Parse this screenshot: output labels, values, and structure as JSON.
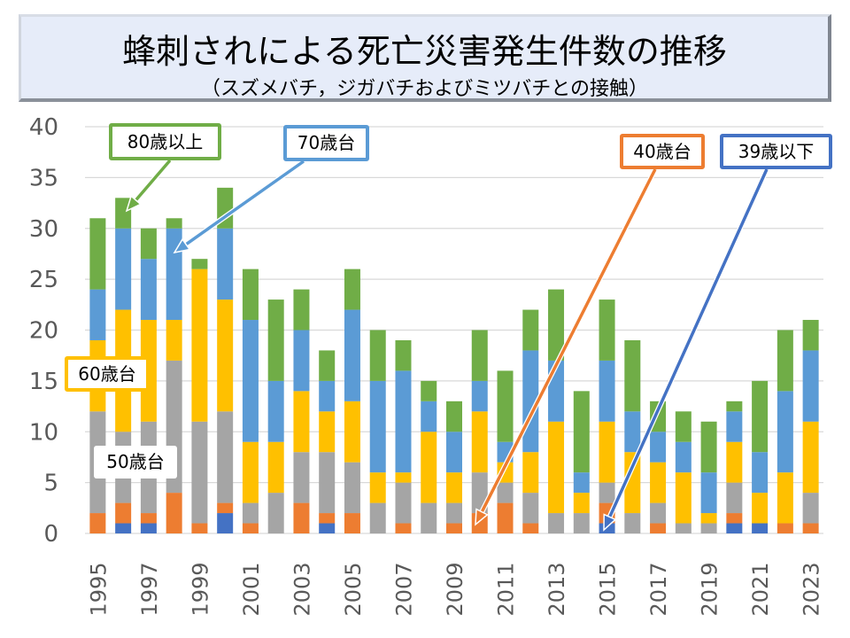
{
  "title": {
    "main": "蜂刺されによる死亡災害発生件数の推移",
    "sub": "（スズメバチ，ジガバチおよびミツバチとの接触）"
  },
  "chart_data": {
    "type": "bar",
    "stacked": true,
    "title": "蜂刺されによる死亡災害発生件数の推移",
    "subtitle": "（スズメバチ，ジガバチおよびミツバチとの接触）",
    "xlabel": "",
    "ylabel": "",
    "ylim": [
      0,
      40
    ],
    "yticks": [
      0,
      5,
      10,
      15,
      20,
      25,
      30,
      35,
      40
    ],
    "grid": true,
    "categories": [
      "1995",
      "1996",
      "1997",
      "1998",
      "1999",
      "2000",
      "2001",
      "2002",
      "2003",
      "2004",
      "2005",
      "2006",
      "2007",
      "2008",
      "2009",
      "2010",
      "2011",
      "2012",
      "2013",
      "2014",
      "2015",
      "2016",
      "2017",
      "2018",
      "2019",
      "2020",
      "2021",
      "2022",
      "2023"
    ],
    "xtick_labels": [
      "1995",
      "1997",
      "1999",
      "2001",
      "2003",
      "2005",
      "2007",
      "2009",
      "2011",
      "2013",
      "2015",
      "2017",
      "2019",
      "2021",
      "2023"
    ],
    "series": [
      {
        "name": "39歳以下",
        "color": "#4472C4",
        "values": [
          0,
          1,
          1,
          0,
          0,
          2,
          0,
          0,
          0,
          1,
          0,
          0,
          0,
          0,
          0,
          0,
          0,
          0,
          0,
          0,
          1,
          0,
          0,
          0,
          0,
          1,
          1,
          0,
          0
        ]
      },
      {
        "name": "40歳台",
        "color": "#ED7D31",
        "values": [
          2,
          2,
          1,
          4,
          1,
          1,
          1,
          0,
          3,
          1,
          2,
          0,
          1,
          0,
          1,
          2,
          3,
          1,
          0,
          0,
          2,
          0,
          1,
          0,
          0,
          1,
          0,
          1,
          1
        ]
      },
      {
        "name": "50歳台",
        "color": "#A5A5A5",
        "values": [
          10,
          7,
          9,
          13,
          10,
          9,
          2,
          4,
          5,
          6,
          5,
          3,
          4,
          3,
          2,
          4,
          2,
          3,
          2,
          2,
          2,
          2,
          2,
          1,
          1,
          3,
          0,
          0,
          3
        ]
      },
      {
        "name": "60歳台",
        "color": "#FFC000",
        "values": [
          7,
          12,
          10,
          4,
          15,
          11,
          6,
          5,
          6,
          4,
          6,
          3,
          1,
          7,
          3,
          6,
          2,
          4,
          9,
          2,
          6,
          6,
          4,
          5,
          1,
          4,
          3,
          5,
          7
        ]
      },
      {
        "name": "70歳台",
        "color": "#5B9BD5",
        "values": [
          5,
          8,
          6,
          9,
          0,
          7,
          12,
          6,
          6,
          3,
          9,
          9,
          10,
          3,
          4,
          3,
          2,
          10,
          6,
          2,
          6,
          4,
          3,
          3,
          4,
          3,
          4,
          8,
          7
        ]
      },
      {
        "name": "80歳以上",
        "color": "#70AD47",
        "values": [
          7,
          3,
          3,
          1,
          1,
          4,
          5,
          8,
          4,
          3,
          4,
          5,
          3,
          2,
          3,
          5,
          7,
          4,
          7,
          8,
          6,
          7,
          3,
          3,
          5,
          1,
          7,
          6,
          3
        ]
      }
    ],
    "totals": [
      31,
      33,
      30,
      31,
      27,
      34,
      26,
      23,
      24,
      18,
      26,
      20,
      19,
      15,
      13,
      20,
      16,
      22,
      24,
      14,
      23,
      19,
      13,
      12,
      11,
      13,
      15,
      20,
      21
    ],
    "annotations": [
      {
        "label": "80歳以上",
        "series": "80歳以上",
        "points_to": "1996"
      },
      {
        "label": "70歳台",
        "series": "70歳台",
        "points_to": "1998"
      },
      {
        "label": "60歳台",
        "series": "60歳台",
        "points_to": "1995"
      },
      {
        "label": "50歳台",
        "series": "50歳台",
        "points_to": "1996"
      },
      {
        "label": "40歳台",
        "series": "40歳台",
        "points_to": "2010"
      },
      {
        "label": "39歳以下",
        "series": "39歳以下",
        "points_to": "2015"
      }
    ],
    "legend": "callouts"
  },
  "callouts": {
    "age80": "80歳以上",
    "age70": "70歳台",
    "age60": "60歳台",
    "age50": "50歳台",
    "age40": "40歳台",
    "age39": "39歳以下"
  },
  "colors": {
    "grid": "#D9D9D9",
    "axis_text": "#595959"
  }
}
